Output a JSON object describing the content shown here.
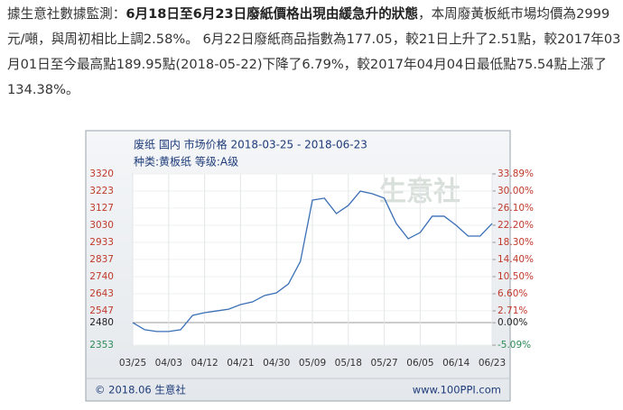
{
  "article": {
    "lead": "據生意社數據監測：",
    "highlight": "6月18日至6月23日廢紙價格出現由緩急升的狀態",
    "body": "，本周廢黃板紙市場均價為2999元/噸，與周初相比上調2.58%。 6月22日廢紙商品指數為177.05，較21日上升了2.51點，較2017年03月01日至今最高點189.95點(2018-05-22)下降了6.79%，較2017年04月04日最低點75.54點上漲了134.38%。"
  },
  "chart_data": {
    "type": "line",
    "title": "废纸 国内 市场价格 2018-03-25 - 2018-06-23",
    "subtitle": "种类:黄板纸 等级:A级",
    "watermark": "生意社",
    "footer_left": "© 2018.06 生意社",
    "footer_right": "www.100PPI.com",
    "categories": [
      "03/25",
      null,
      null,
      "04/03",
      null,
      null,
      "04/12",
      null,
      null,
      "04/21",
      null,
      null,
      "04/30",
      null,
      null,
      "05/09",
      null,
      null,
      "05/18",
      null,
      null,
      "05/27",
      null,
      null,
      "06/05",
      null,
      null,
      "06/14",
      null,
      null,
      "06/23"
    ],
    "series": [
      {
        "name": "黄板纸",
        "color": "#3a6fb5",
        "values": [
          2480,
          2440,
          2430,
          2430,
          2440,
          2521,
          2536,
          2546,
          2556,
          2582,
          2597,
          2633,
          2648,
          2699,
          2826,
          3172,
          3183,
          3096,
          3142,
          3223,
          3208,
          3183,
          3040,
          2954,
          2989,
          3081,
          3081,
          3030,
          2969,
          2969,
          3040
        ]
      }
    ],
    "ylim": [
      2353,
      3320
    ],
    "yticks": [
      3320,
      3223,
      3127,
      3030,
      2933,
      2837,
      2740,
      2643,
      2547,
      2480,
      2353
    ],
    "y2lim": [
      -5.09,
      33.89
    ],
    "y2ticks": [
      {
        "value": 33.89,
        "label": "33.89%"
      },
      {
        "value": 30,
        "label": "30.00%"
      },
      {
        "value": 26.1,
        "label": "26.10%"
      },
      {
        "value": 22.2,
        "label": "22.20%"
      },
      {
        "value": 18.3,
        "label": "18.30%"
      },
      {
        "value": 14.4,
        "label": "14.40%"
      },
      {
        "value": 10.5,
        "label": "10.50%"
      },
      {
        "value": 6.6,
        "label": "6.60%"
      },
      {
        "value": 2.71,
        "label": "2.71%"
      },
      {
        "value": 0,
        "label": "0.00%"
      },
      {
        "value": -5.09,
        "label": "-5.09%"
      }
    ],
    "baseline": 2480,
    "grid": true
  }
}
